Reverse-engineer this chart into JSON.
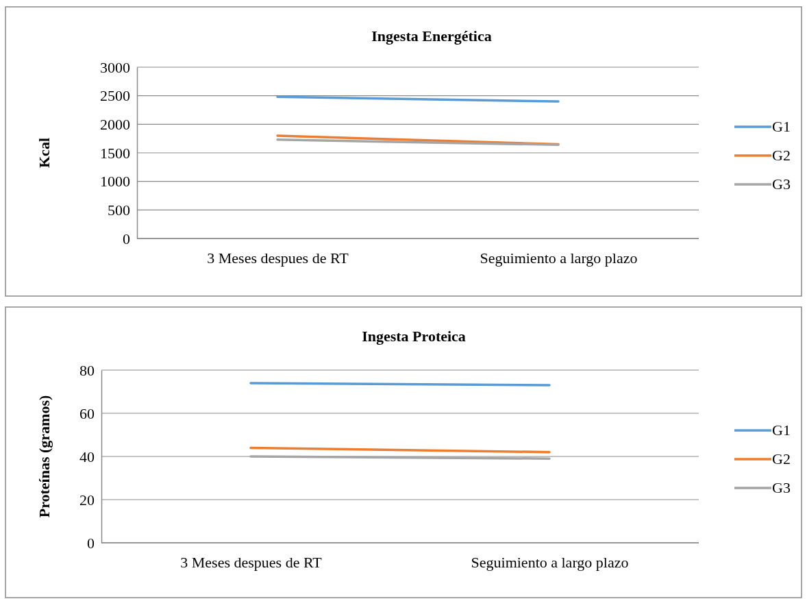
{
  "chart_data": [
    {
      "type": "line",
      "title": "Ingesta Energética",
      "ylabel": "Kcal",
      "categories": [
        "3 Meses despues de RT",
        "Seguimiento a largo plazo"
      ],
      "series": [
        {
          "name": "G1",
          "color": "#5b9bd5",
          "values": [
            2480,
            2400
          ]
        },
        {
          "name": "G2",
          "color": "#ed7d31",
          "values": [
            1800,
            1650
          ]
        },
        {
          "name": "G3",
          "color": "#a5a5a5",
          "values": [
            1730,
            1640
          ]
        }
      ],
      "ylim": [
        0,
        3000
      ],
      "yticks": [
        0,
        500,
        1000,
        1500,
        2000,
        2500,
        3000
      ],
      "grid": "y",
      "legend": "right"
    },
    {
      "type": "line",
      "title": "Ingesta Proteica",
      "ylabel": "Proteínas (gramos)",
      "categories": [
        "3 Meses despues de RT",
        "Seguimiento a largo plazo"
      ],
      "series": [
        {
          "name": "G1",
          "color": "#5b9bd5",
          "values": [
            74,
            73
          ]
        },
        {
          "name": "G2",
          "color": "#ed7d31",
          "values": [
            44,
            42
          ]
        },
        {
          "name": "G3",
          "color": "#a5a5a5",
          "values": [
            40,
            39
          ]
        }
      ],
      "ylim": [
        0,
        80
      ],
      "yticks": [
        0,
        20,
        40,
        60,
        80
      ],
      "grid": "y",
      "legend": "right"
    }
  ]
}
